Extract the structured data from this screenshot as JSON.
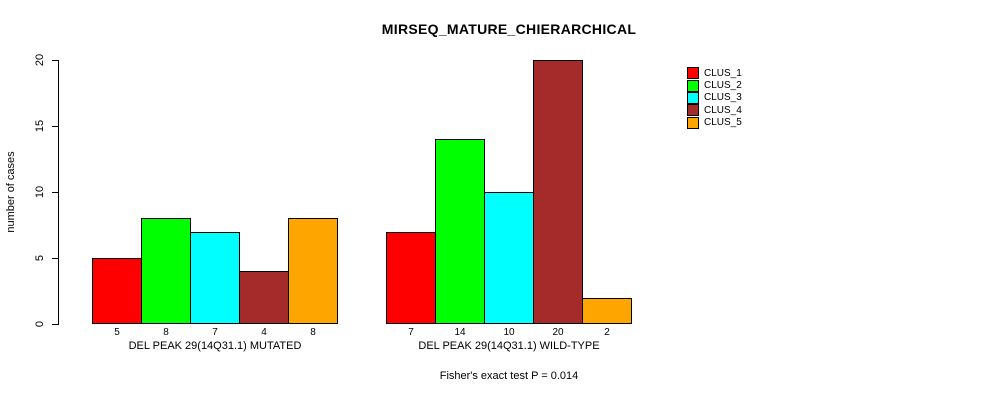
{
  "chart_data": {
    "type": "bar",
    "title": "MIRSEQ_MATURE_CHIERARCHICAL",
    "ylabel": "number of cases",
    "xlabel": "",
    "ylim": [
      0,
      20
    ],
    "yticks": [
      0,
      5,
      10,
      15,
      20
    ],
    "grid": "off",
    "legend_position": "right",
    "footnote": "Fisher's exact test P = 0.014",
    "series": [
      "CLUS_1",
      "CLUS_2",
      "CLUS_3",
      "CLUS_4",
      "CLUS_5"
    ],
    "colors": [
      "#ff0000",
      "#00ff00",
      "#00ffff",
      "#a52a2a",
      "#ffa500"
    ],
    "bar_border_color": "#000000",
    "background_color": "#ffffff",
    "groups": [
      {
        "label": "DEL PEAK 29(14Q31.1) MUTATED",
        "values": [
          5,
          8,
          7,
          4,
          8
        ]
      },
      {
        "label": "DEL PEAK 29(14Q31.1) WILD-TYPE",
        "values": [
          7,
          14,
          10,
          20,
          2
        ]
      }
    ]
  }
}
